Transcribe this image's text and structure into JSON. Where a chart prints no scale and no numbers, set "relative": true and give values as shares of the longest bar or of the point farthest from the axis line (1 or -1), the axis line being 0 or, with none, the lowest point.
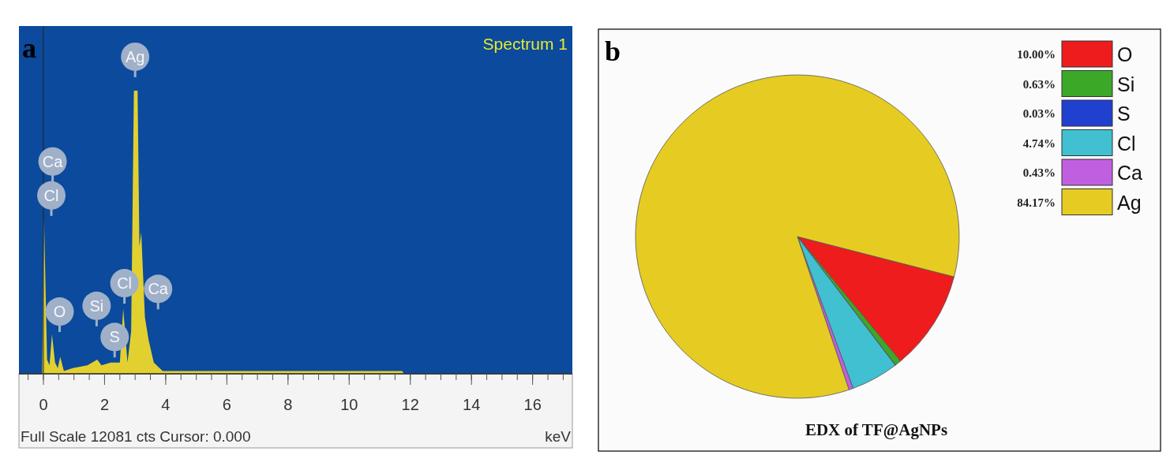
{
  "chart_data": [
    {
      "type": "area",
      "title": "Spectrum 1",
      "xlabel": "keV",
      "relative": true,
      "xlim": [
        -0.8,
        17.3
      ],
      "xticks": [
        0,
        2,
        4,
        6,
        8,
        10,
        12,
        14,
        16
      ],
      "annotations": [
        "a",
        "Full Scale 12081 cts Cursor: 0.000",
        "Ag",
        "Ca",
        "Cl",
        "O",
        "Si",
        "S",
        "Cl",
        "Ca"
      ],
      "x": [
        -0.04,
        0.02,
        0.12,
        0.2,
        0.28,
        0.38,
        0.47,
        0.55,
        0.67,
        0.96,
        1.44,
        1.76,
        1.9,
        2.2,
        2.5,
        2.61,
        2.75,
        2.87,
        2.96,
        3.08,
        3.14,
        3.2,
        3.32,
        3.44,
        3.61,
        3.9,
        4.96,
        11.73,
        11.8,
        17.08
      ],
      "series": [
        {
          "color": "#e2d030",
          "values": [
            0,
            0.55,
            0.05,
            0.03,
            0.14,
            0.04,
            0.02,
            0.06,
            0.01,
            0.02,
            0.03,
            0.05,
            0.03,
            0.04,
            0.04,
            0.23,
            0.04,
            0.15,
            1.0,
            1.0,
            0.45,
            0.5,
            0.2,
            0.12,
            0.04,
            0.01,
            0.01,
            0.01,
            0,
            0
          ]
        }
      ]
    },
    {
      "type": "pie",
      "title": "EDX of TF@AgNPs",
      "annotations": [
        "b"
      ],
      "categories": [
        "O",
        "Si",
        "S",
        "Cl",
        "Ca",
        "Ag"
      ],
      "values": [
        10.0,
        0.63,
        0.03,
        4.74,
        0.43,
        84.17
      ],
      "colors": [
        "#ee1c1c",
        "#3ca828",
        "#2040d0",
        "#40c0d0",
        "#c060e0",
        "#e6cc22"
      ],
      "value_labels": [
        "10.00%",
        "0.63%",
        "0.03%",
        "4.74%",
        "0.43%",
        "84.17%"
      ],
      "data_labels": true,
      "legend": "top right"
    }
  ]
}
